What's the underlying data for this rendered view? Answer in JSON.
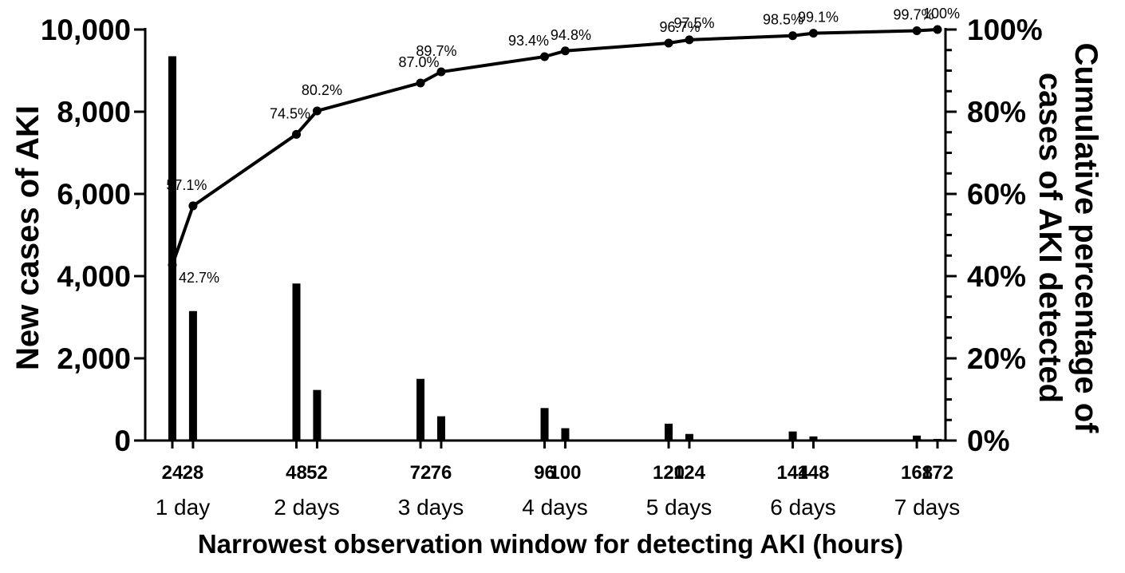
{
  "chart_data": {
    "type": "bar",
    "x_ticks": [
      "24",
      "28",
      "48",
      "52",
      "72",
      "76",
      "96",
      "100",
      "120",
      "124",
      "144",
      "148",
      "168",
      "172"
    ],
    "x": [
      24,
      28,
      48,
      52,
      72,
      76,
      96,
      100,
      120,
      124,
      144,
      148,
      168,
      172
    ],
    "bar_values": [
      9350,
      3150,
      3820,
      1230,
      1500,
      590,
      790,
      300,
      410,
      160,
      220,
      100,
      120,
      40
    ],
    "cumulative_percent": [
      42.7,
      57.1,
      74.5,
      80.2,
      87.0,
      89.7,
      93.4,
      94.8,
      96.7,
      97.5,
      98.5,
      99.1,
      99.7,
      100
    ],
    "point_labels": [
      "42.7%",
      "57.1%",
      "74.5%",
      "80.2%",
      "87.0%",
      "89.7%",
      "93.4%",
      "94.8%",
      "96.7%",
      "97.5%",
      "98.5%",
      "99.1%",
      "99.7%",
      "100%"
    ],
    "day_labels": [
      "1 day",
      "2 days",
      "3 days",
      "4 days",
      "5 days",
      "6 days",
      "7 days"
    ],
    "xlabel": "Narrowest observation window for detecting AKI (hours)",
    "ylabel_left": "New cases of AKI",
    "ylabel_right_lines": [
      "Cumulative percentage of",
      "cases of AKI detected"
    ],
    "ylim_left": [
      0,
      10000
    ],
    "yticks_left": [
      "0",
      "2,000",
      "4,000",
      "6,000",
      "8,000",
      "10,000"
    ],
    "ylim_right": [
      0,
      100
    ],
    "yticks_right": [
      "0%",
      "20%",
      "40%",
      "60%",
      "80%",
      "100%"
    ],
    "grid": false,
    "colors": {
      "bars": "#000000",
      "line": "#000000"
    }
  }
}
